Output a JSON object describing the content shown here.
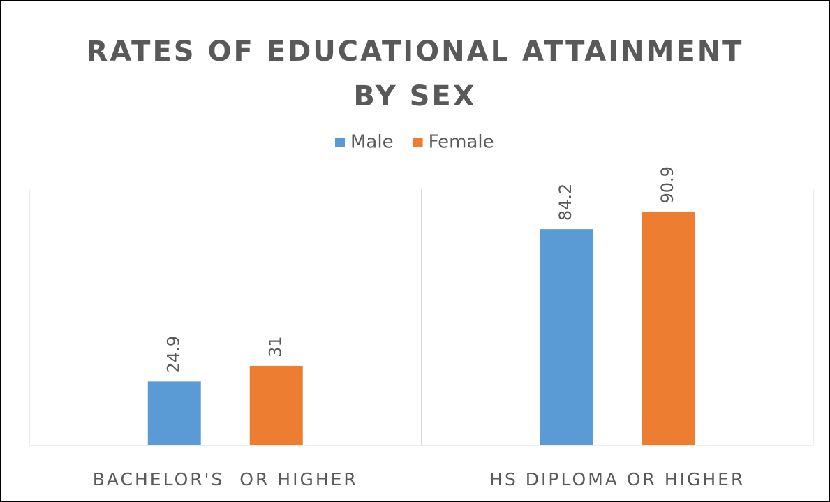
{
  "chart_data": {
    "type": "bar",
    "title": "RATES OF EDUCATIONAL ATTAINMENT BY SEX",
    "categories": [
      "BACHELOR'S  OR HIGHER",
      "HS DIPLOMA OR HIGHER"
    ],
    "series": [
      {
        "name": "Male",
        "color": "#5b9bd5",
        "values": [
          24.9,
          84.2
        ]
      },
      {
        "name": "Female",
        "color": "#ed7d31",
        "values": [
          31,
          90.9
        ]
      }
    ],
    "ylim": [
      0,
      100
    ],
    "legend": "top"
  }
}
